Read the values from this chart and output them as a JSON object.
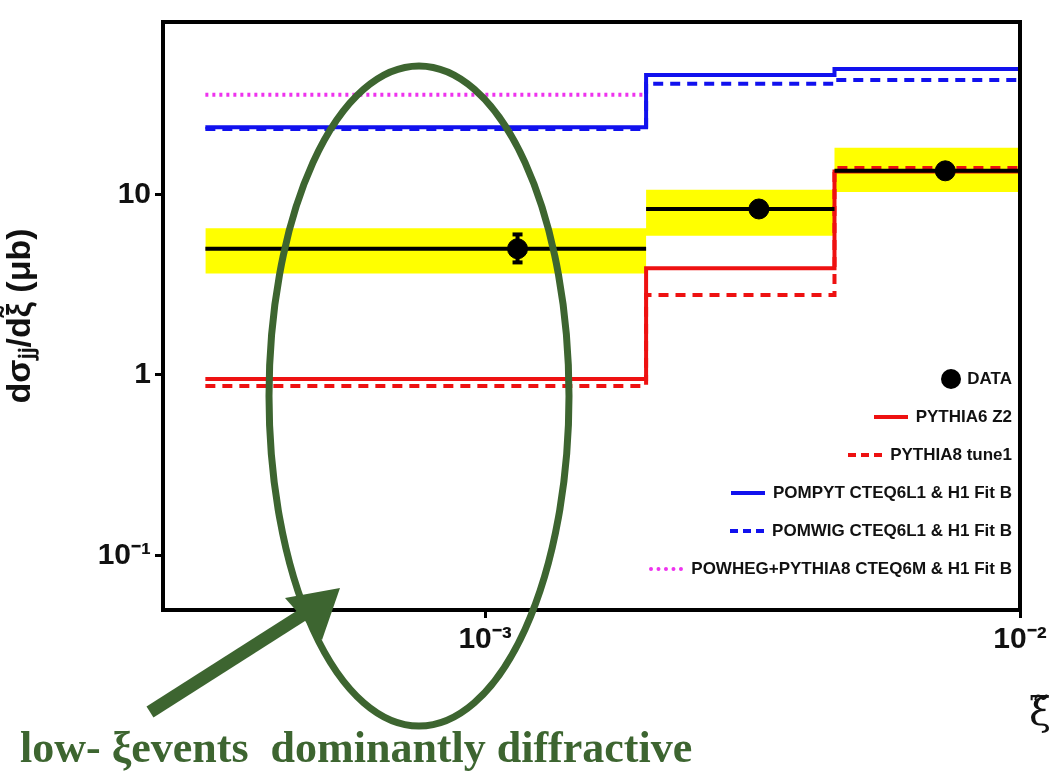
{
  "chart_data": {
    "type": "step",
    "ylabel": "dσⱼⱼ/dξ̃ (μb)",
    "xlabel": "ξ̃",
    "log": "xy",
    "xlim": [
      0.00025,
      0.01
    ],
    "ylim": [
      0.05,
      90
    ],
    "xticks": [
      {
        "value": 0.001,
        "label": "10⁻³"
      },
      {
        "value": 0.01,
        "label": "10⁻²"
      }
    ],
    "yticks": [
      {
        "value": 0.1,
        "label": "10⁻¹"
      },
      1,
      10
    ],
    "grid": false,
    "legend": "bottom right",
    "annotations": [
      "low- ξevents  dominantly diffractive"
    ],
    "series": [
      {
        "name": "DATA",
        "type": "scatter",
        "color": "#000000",
        "marker": "circle",
        "x": [
          0.00115,
          0.00325,
          0.00725
        ],
        "values": [
          5.0,
          8.3,
          13.5
        ],
        "xerrors": [
          [
            0.0003,
            0.002
          ],
          [
            0.002,
            0.0045
          ],
          [
            0.0045,
            0.01
          ]
        ],
        "errors": [
          [
            4.2,
            6.0
          ],
          null,
          null
        ]
      },
      {
        "type": "area",
        "color": "#ffff00",
        "x": [
          0.0003,
          0.002,
          0.002,
          0.0045,
          0.0045,
          0.01
        ],
        "values": [
          null,
          null,
          null,
          null,
          null,
          null
        ],
        "lower": [
          3.65,
          3.65,
          5.9,
          5.9,
          10.3,
          10.3
        ],
        "upper": [
          6.5,
          6.5,
          10.6,
          10.6,
          18.1,
          18.1
        ]
      },
      {
        "name": "PYTHIA6 Z2",
        "type": "step",
        "color": "#ee1111",
        "line_style": "solid",
        "x": [
          0.0003,
          0.002,
          0.0045,
          0.01
        ],
        "values": [
          0.95,
          3.9,
          13.4,
          13.4
        ]
      },
      {
        "name": "PYTHIA8 tune1",
        "type": "step",
        "color": "#ee1111",
        "line_style": "dashed",
        "x": [
          0.0003,
          0.002,
          0.0045,
          0.01
        ],
        "values": [
          0.87,
          2.77,
          14.0,
          14.0
        ]
      },
      {
        "name": "POMPYT CTEQ6L1 & H1 Fit B",
        "type": "step",
        "color": "#1111ee",
        "line_style": "solid",
        "x": [
          0.0003,
          0.002,
          0.0045,
          0.01
        ],
        "values": [
          23.5,
          45.8,
          49.4,
          49.4
        ]
      },
      {
        "name": "POMWIG CTEQ6L1 & H1 Fit B",
        "type": "step",
        "color": "#1111ee",
        "line_style": "dashed",
        "x": [
          0.0003,
          0.002,
          0.0045,
          0.01
        ],
        "values": [
          23,
          40.9,
          43,
          43
        ]
      },
      {
        "name": "POWHEG+PYTHIA8 CTEQ6M & H1 Fit B",
        "type": "step",
        "color": "#ee33ee",
        "line_style": "dotted",
        "x": [
          0.0003,
          0.002
        ],
        "values": [
          35.6,
          35.6
        ]
      }
    ]
  }
}
